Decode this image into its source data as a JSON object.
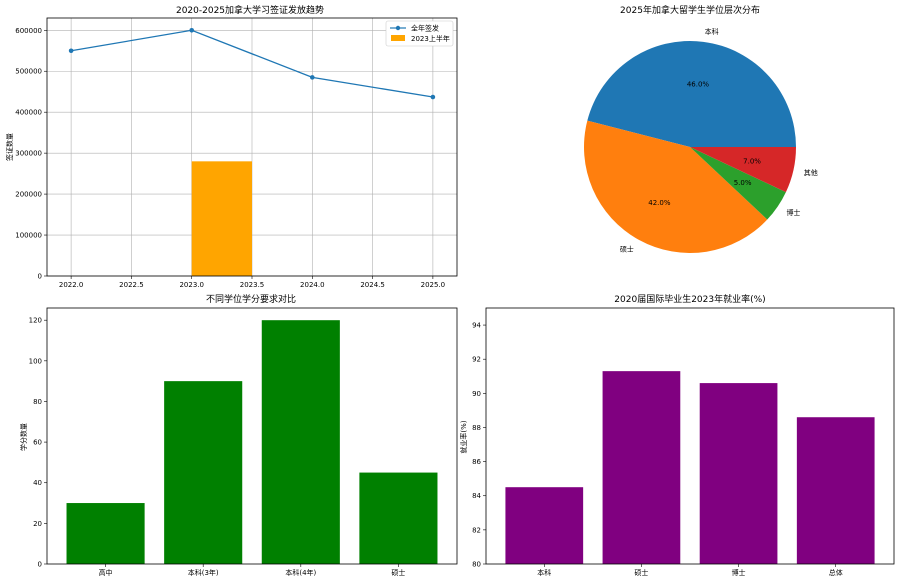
{
  "chart_data": [
    {
      "type": "line",
      "title": "2020-2025加拿大学习签证发放趋势",
      "xlabel": "",
      "ylabel": "签证数量",
      "xlim": [
        2021.8,
        2025.2
      ],
      "ylim": [
        0,
        630000
      ],
      "xticks": [
        2022.0,
        2022.5,
        2023.0,
        2023.5,
        2024.0,
        2024.5,
        2025.0
      ],
      "xtick_labels": [
        "2022.0",
        "2022.5",
        "2023.0",
        "2023.5",
        "2024.0",
        "2024.5",
        "2025.0"
      ],
      "yticks": [
        0,
        100000,
        200000,
        300000,
        400000,
        500000,
        600000
      ],
      "ytick_labels": [
        "0",
        "100000",
        "200000",
        "300000",
        "400000",
        "500000",
        "600000"
      ],
      "grid": true,
      "legend_position": "top-right",
      "series": [
        {
          "name": "全年签发",
          "kind": "line",
          "color": "#1f77b4",
          "x": [
            2022,
            2023,
            2024,
            2025
          ],
          "y": [
            550000,
            600000,
            485000,
            437000
          ]
        },
        {
          "name": "2023上半年",
          "kind": "bar",
          "color": "#ffa500",
          "x": [
            2023.25
          ],
          "width": 0.5,
          "y": [
            280000
          ]
        }
      ]
    },
    {
      "type": "pie",
      "title": "2025年加拿大留学生学位层次分布",
      "slices": [
        {
          "label": "本科",
          "value": 46.0,
          "pct": "46.0%",
          "color": "#1f77b4"
        },
        {
          "label": "硕士",
          "value": 42.0,
          "pct": "42.0%",
          "color": "#ff7f0e"
        },
        {
          "label": "博士",
          "value": 5.0,
          "pct": "5.0%",
          "color": "#2ca02c"
        },
        {
          "label": "其他",
          "value": 7.0,
          "pct": "7.0%",
          "color": "#d62728"
        }
      ]
    },
    {
      "type": "bar",
      "title": "不同学位学分要求对比",
      "xlabel": "",
      "ylabel": "学分数量",
      "color": "#008000",
      "categories": [
        "高中",
        "本科(3年)",
        "本科(4年)",
        "硕士"
      ],
      "values": [
        30,
        90,
        120,
        45
      ],
      "ylim": [
        0,
        126
      ],
      "yticks": [
        0,
        20,
        40,
        60,
        80,
        100,
        120
      ],
      "ytick_labels": [
        "0",
        "20",
        "40",
        "60",
        "80",
        "100",
        "120"
      ],
      "grid": false
    },
    {
      "type": "bar",
      "title": "2020届国际毕业生2023年就业率(%)",
      "xlabel": "",
      "ylabel": "就业率(%)",
      "color": "#800080",
      "categories": [
        "本科",
        "硕士",
        "博士",
        "总体"
      ],
      "values": [
        84.5,
        91.3,
        90.6,
        88.6
      ],
      "ylim": [
        80,
        95
      ],
      "yticks": [
        80,
        82,
        84,
        86,
        88,
        90,
        92,
        94
      ],
      "ytick_labels": [
        "80",
        "82",
        "84",
        "86",
        "88",
        "90",
        "92",
        "94"
      ],
      "grid": false
    }
  ]
}
